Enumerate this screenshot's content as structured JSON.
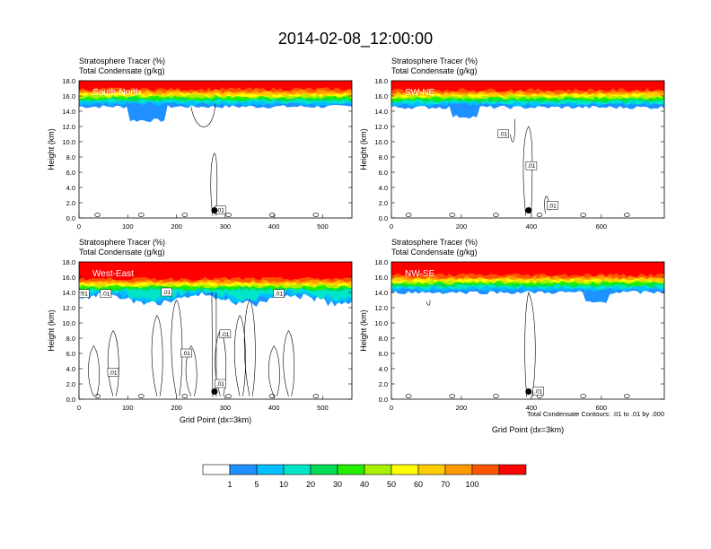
{
  "title": "2014-02-08_12:00:00",
  "subtitle_line1": "Stratosphere Tracer   (%)",
  "subtitle_line2": "Total Condensate   (g/kg)",
  "ylabel": "Height (km)",
  "xlabel": "Grid Point (dx=3km)",
  "contour_note": "Total Condensate Contours: .01 to .01 by .000",
  "colorbar": {
    "colors": [
      "#ffffff",
      "#1e90ff",
      "#00bfff",
      "#00e5c8",
      "#00dd55",
      "#22ee00",
      "#aaf000",
      "#ffff00",
      "#ffcc00",
      "#ff9900",
      "#ff5500",
      "#ff0000"
    ],
    "labels": [
      "1",
      "5",
      "10",
      "20",
      "30",
      "40",
      "50",
      "60",
      "70",
      "100"
    ]
  },
  "panels": [
    {
      "label": "South-North",
      "xmax": 560,
      "xticks": [
        "0",
        "100",
        "200",
        "300",
        "400",
        "500"
      ],
      "xtick_values": [
        0,
        100,
        200,
        300,
        400,
        500
      ],
      "yticks": [
        "0.0",
        "2.0",
        "4.0",
        "6.0",
        "8.0",
        "10.0",
        "12.0",
        "14.0",
        "16.0",
        "18.0"
      ],
      "marker_x": 278,
      "contour_labels": [
        ".01"
      ],
      "show_xlabel": false,
      "show_note": false
    },
    {
      "label": "SW-NE",
      "xmax": 780,
      "xticks": [
        "0",
        "200",
        "400",
        "600"
      ],
      "xtick_values": [
        0,
        200,
        400,
        600
      ],
      "yticks": [
        "0.0",
        "2.0",
        "4.0",
        "6.0",
        "8.0",
        "10.0",
        "12.0",
        "14.0",
        "16.0",
        "18.0"
      ],
      "marker_x": 392,
      "contour_labels": [
        ".01",
        ".01",
        ".01"
      ],
      "show_xlabel": false,
      "show_note": false
    },
    {
      "label": "West-East",
      "xmax": 560,
      "xticks": [
        "0",
        "100",
        "200",
        "300",
        "400",
        "500"
      ],
      "xtick_values": [
        0,
        100,
        200,
        300,
        400,
        500
      ],
      "yticks": [
        "0.0",
        "2.0",
        "4.0",
        "6.0",
        "8.0",
        "10.0",
        "12.0",
        "14.0",
        "16.0",
        "18.0"
      ],
      "marker_x": 278,
      "contour_labels": [
        ".01",
        ".01",
        ".01",
        ".01",
        ".01",
        ".01",
        ".01",
        ".01"
      ],
      "show_xlabel": true,
      "show_note": false
    },
    {
      "label": "NW-SE",
      "xmax": 780,
      "xticks": [
        "0",
        "200",
        "400",
        "600"
      ],
      "xtick_values": [
        0,
        200,
        400,
        600
      ],
      "yticks": [
        "0.0",
        "2.0",
        "4.0",
        "6.0",
        "8.0",
        "10.0",
        "12.0",
        "14.0",
        "16.0",
        "18.0"
      ],
      "marker_x": 392,
      "contour_labels": [
        ".01"
      ],
      "show_xlabel": true,
      "show_note": true
    }
  ],
  "chart_data": {
    "type": "heatmap",
    "title": "2014-02-08_12:00:00",
    "variables": [
      "Stratosphere Tracer (%)",
      "Total Condensate (g/kg)"
    ],
    "ylabel": "Height (km)",
    "xlabel": "Grid Point (dx=3km)",
    "ylim": [
      0,
      18
    ],
    "color_levels": [
      1,
      5,
      10,
      20,
      30,
      40,
      50,
      60,
      70,
      100
    ],
    "contour_level": 0.01,
    "panels": [
      {
        "label": "South-North",
        "xlim": [
          0,
          560
        ],
        "tracer_layer_base_km": 14.6,
        "tracer_top_km": 18
      },
      {
        "label": "SW-NE",
        "xlim": [
          0,
          780
        ],
        "tracer_layer_base_km": 14.5,
        "tracer_top_km": 18
      },
      {
        "label": "West-East",
        "xlim": [
          0,
          560
        ],
        "tracer_layer_base_km": 13.5,
        "tracer_top_km": 18
      },
      {
        "label": "NW-SE",
        "xlim": [
          0,
          780
        ],
        "tracer_layer_base_km": 14.0,
        "tracer_top_km": 18
      }
    ]
  }
}
